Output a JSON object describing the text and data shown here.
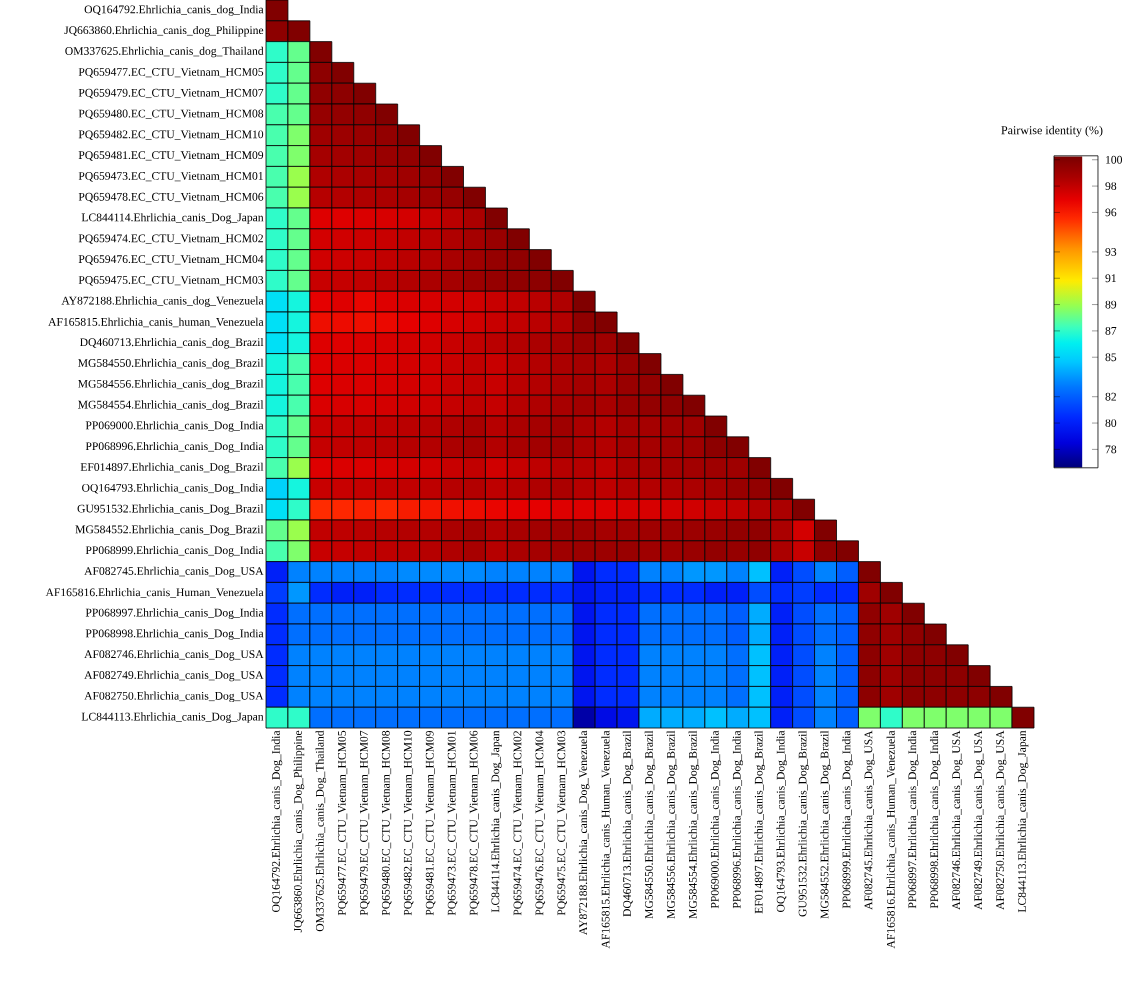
{
  "chart_data": {
    "type": "heatmap",
    "clabel": "Pairwise identity (%)",
    "clim": [
      76.6,
      100.3
    ],
    "cticks": [
      78,
      80,
      82,
      85,
      87,
      89,
      91,
      93,
      96,
      98,
      100
    ],
    "categories": [
      "OQ164792.Ehrlichia_canis_Dog_India",
      "JQ663860.Ehrlichia_canis_Dog_Philippine",
      "OM337625.Ehrlichia_canis_Dog_Thailand",
      "PQ659477.EC_CTU_Vietnam_HCM05",
      "PQ659479.EC_CTU_Vietnam_HCM07",
      "PQ659480.EC_CTU_Vietnam_HCM08",
      "PQ659482.EC_CTU_Vietnam_HCM10",
      "PQ659481.EC_CTU_Vietnam_HCM09",
      "PQ659473.EC_CTU_Vietnam_HCM01",
      "PQ659478.EC_CTU_Vietnam_HCM06",
      "LC844114.Ehrlichia_canis_Dog_Japan",
      "PQ659474.EC_CTU_Vietnam_HCM02",
      "PQ659476.EC_CTU_Vietnam_HCM04",
      "PQ659475.EC_CTU_Vietnam_HCM03",
      "AY872188.Ehrlichia_canis_Dog_Venezuela",
      "AF165815.Ehrlichia_canis_Human_Venezuela",
      "DQ460713.Ehrlichia_canis_Dog_Brazil",
      "MG584550.Ehrlichia_canis_Dog_Brazil",
      "MG584556.Ehrlichia_canis_Dog_Brazil",
      "MG584554.Ehrlichia_canis_Dog_Brazil",
      "PP069000.Ehrlichia_canis_Dog_India",
      "PP068996.Ehrlichia_canis_Dog_India",
      "EF014897.Ehrlichia_canis_Dog_Brazil",
      "OQ164793.Ehrlichia_canis_Dog_India",
      "GU951532.Ehrlichia_canis_Dog_Brazil",
      "MG584552.Ehrlichia_canis_Dog_Brazil",
      "PP068999.Ehrlichia_canis_Dog_India",
      "AF082745.Ehrlichia_canis_Dog_USA",
      "AF165816.Ehrlichia_canis_Human_Venezuela",
      "PP068997.Ehrlichia_canis_Dog_India",
      "PP068998.Ehrlichia_canis_Dog_India",
      "AF082746.Ehrlichia_canis_Dog_USA",
      "AF082749.Ehrlichia_canis_Dog_USA",
      "AF082750.Ehrlichia_canis_Dog_USA",
      "LC844113.Ehrlichia_canis_Dog_Japan"
    ],
    "y_categories": [
      "OQ164792.Ehrlichia_canis_dog_India",
      "JQ663860.Ehrlichia_canis_dog_Philippine",
      "OM337625.Ehrlichia_canis_dog_Thailand",
      "PQ659477.EC_CTU_Vietnam_HCM05",
      "PQ659479.EC_CTU_Vietnam_HCM07",
      "PQ659480.EC_CTU_Vietnam_HCM08",
      "PQ659482.EC_CTU_Vietnam_HCM10",
      "PQ659481.EC_CTU_Vietnam_HCM09",
      "PQ659473.EC_CTU_Vietnam_HCM01",
      "PQ659478.EC_CTU_Vietnam_HCM06",
      "LC844114.Ehrlichia_canis_Dog_Japan",
      "PQ659474.EC_CTU_Vietnam_HCM02",
      "PQ659476.EC_CTU_Vietnam_HCM04",
      "PQ659475.EC_CTU_Vietnam_HCM03",
      "AY872188.Ehrlichia_canis_dog_Venezuela",
      "AF165815.Ehrlichia_canis_human_Venezuela",
      "DQ460713.Ehrlichia_canis_dog_Brazil",
      "MG584550.Ehrlichia_canis_dog_Brazil",
      "MG584556.Ehrlichia_canis_dog_Brazil",
      "MG584554.Ehrlichia_canis_dog_Brazil",
      "PP069000.Ehrlichia_canis_Dog_India",
      "PP068996.Ehrlichia_canis_Dog_India",
      "EF014897.Ehrlichia_canis_Dog_Brazil",
      "OQ164793.Ehrlichia_canis_Dog_India",
      "GU951532.Ehrlichia_canis_Dog_Brazil",
      "MG584552.Ehrlichia_canis_Dog_Brazil",
      "PP068999.Ehrlichia_canis_Dog_India",
      "AF082745.Ehrlichia_canis_Dog_USA",
      "AF165816.Ehrlichia_canis_Human_Venezuela",
      "PP068997.Ehrlichia_canis_Dog_India",
      "PP068998.Ehrlichia_canis_Dog_India",
      "AF082746.Ehrlichia_canis_Dog_USA",
      "AF082749.Ehrlichia_canis_Dog_USA",
      "AF082750.Ehrlichia_canis_Dog_USA",
      "LC844113.Ehrlichia_canis_Dog_Japan"
    ],
    "cells": [
      [
        100,
        null,
        null,
        null,
        null,
        null,
        null,
        null,
        null,
        null,
        null,
        null,
        null,
        null,
        null,
        null,
        null,
        null,
        null,
        null,
        null,
        null,
        null,
        null,
        null,
        null,
        null,
        null,
        null,
        null,
        null,
        null,
        null,
        null,
        null
      ],
      [
        99.6,
        100,
        null,
        null,
        null,
        null,
        null,
        null,
        null,
        null,
        null,
        null,
        null,
        null,
        null,
        null,
        null,
        null,
        null,
        null,
        null,
        null,
        null,
        null,
        null,
        null,
        null,
        null,
        null,
        null,
        null,
        null,
        null,
        null,
        null
      ],
      [
        87,
        88,
        100,
        null,
        null,
        null,
        null,
        null,
        null,
        null,
        null,
        null,
        null,
        null,
        null,
        null,
        null,
        null,
        null,
        null,
        null,
        null,
        null,
        null,
        null,
        null,
        null,
        null,
        null,
        null,
        null,
        null,
        null,
        null,
        null
      ],
      [
        87,
        88,
        99.6,
        100,
        null,
        null,
        null,
        null,
        null,
        null,
        null,
        null,
        null,
        null,
        null,
        null,
        null,
        null,
        null,
        null,
        null,
        null,
        null,
        null,
        null,
        null,
        null,
        null,
        null,
        null,
        null,
        null,
        null,
        null,
        null
      ],
      [
        87,
        88,
        99.5,
        99.6,
        100,
        null,
        null,
        null,
        null,
        null,
        null,
        null,
        null,
        null,
        null,
        null,
        null,
        null,
        null,
        null,
        null,
        null,
        null,
        null,
        null,
        null,
        null,
        null,
        null,
        null,
        null,
        null,
        null,
        null,
        null
      ],
      [
        87.5,
        88,
        99.3,
        99.4,
        99.5,
        100,
        null,
        null,
        null,
        null,
        null,
        null,
        null,
        null,
        null,
        null,
        null,
        null,
        null,
        null,
        null,
        null,
        null,
        null,
        null,
        null,
        null,
        null,
        null,
        null,
        null,
        null,
        null,
        null,
        null
      ],
      [
        87.5,
        88.5,
        99,
        99.1,
        99.2,
        99.4,
        100,
        null,
        null,
        null,
        null,
        null,
        null,
        null,
        null,
        null,
        null,
        null,
        null,
        null,
        null,
        null,
        null,
        null,
        null,
        null,
        null,
        null,
        null,
        null,
        null,
        null,
        null,
        null,
        null
      ],
      [
        87.5,
        88.5,
        98.8,
        98.9,
        99,
        99.2,
        99.4,
        100,
        null,
        null,
        null,
        null,
        null,
        null,
        null,
        null,
        null,
        null,
        null,
        null,
        null,
        null,
        null,
        null,
        null,
        null,
        null,
        null,
        null,
        null,
        null,
        null,
        null,
        null,
        null
      ],
      [
        87.5,
        89,
        98.5,
        98.6,
        98.7,
        98.8,
        99,
        99.3,
        100,
        null,
        null,
        null,
        null,
        null,
        null,
        null,
        null,
        null,
        null,
        null,
        null,
        null,
        null,
        null,
        null,
        null,
        null,
        null,
        null,
        null,
        null,
        null,
        null,
        null,
        null
      ],
      [
        87.5,
        89,
        98.3,
        98.4,
        98.5,
        98.6,
        98.8,
        99,
        99.3,
        100,
        null,
        null,
        null,
        null,
        null,
        null,
        null,
        null,
        null,
        null,
        null,
        null,
        null,
        null,
        null,
        null,
        null,
        null,
        null,
        null,
        null,
        null,
        null,
        null,
        null
      ],
      [
        87,
        88,
        97.2,
        97.2,
        97.3,
        97.4,
        97.5,
        97.8,
        98.2,
        98.6,
        100,
        null,
        null,
        null,
        null,
        null,
        null,
        null,
        null,
        null,
        null,
        null,
        null,
        null,
        null,
        null,
        null,
        null,
        null,
        null,
        null,
        null,
        null,
        null,
        null
      ],
      [
        87,
        88,
        97.5,
        97.6,
        97.7,
        97.8,
        98,
        98.2,
        98.5,
        98.8,
        99.2,
        100,
        null,
        null,
        null,
        null,
        null,
        null,
        null,
        null,
        null,
        null,
        null,
        null,
        null,
        null,
        null,
        null,
        null,
        null,
        null,
        null,
        null,
        null,
        null
      ],
      [
        87,
        88,
        97.6,
        97.7,
        97.8,
        98,
        98.2,
        98.4,
        98.7,
        99,
        99.3,
        99.5,
        100,
        null,
        null,
        null,
        null,
        null,
        null,
        null,
        null,
        null,
        null,
        null,
        null,
        null,
        null,
        null,
        null,
        null,
        null,
        null,
        null,
        null,
        null
      ],
      [
        87,
        88,
        97.8,
        97.9,
        98,
        98.2,
        98.4,
        98.6,
        98.8,
        99.1,
        99.3,
        99.5,
        99.6,
        100,
        null,
        null,
        null,
        null,
        null,
        null,
        null,
        null,
        null,
        null,
        null,
        null,
        null,
        null,
        null,
        null,
        null,
        null,
        null,
        null,
        null
      ],
      [
        85.5,
        86.5,
        97,
        97.2,
        96.8,
        97.2,
        97.3,
        97.4,
        97.5,
        97.6,
        97.8,
        98,
        98.2,
        98.5,
        100,
        null,
        null,
        null,
        null,
        null,
        null,
        null,
        null,
        null,
        null,
        null,
        null,
        null,
        null,
        null,
        null,
        null,
        null,
        null,
        null
      ],
      [
        85.5,
        86.5,
        96.5,
        96.6,
        96.5,
        96.7,
        97,
        97.2,
        97.4,
        97.6,
        97.8,
        98,
        98.2,
        98.4,
        99.5,
        100,
        null,
        null,
        null,
        null,
        null,
        null,
        null,
        null,
        null,
        null,
        null,
        null,
        null,
        null,
        null,
        null,
        null,
        null,
        null
      ],
      [
        85.5,
        86.5,
        97.2,
        97.2,
        97.3,
        97.4,
        97.5,
        97.6,
        97.8,
        98,
        98.2,
        98.4,
        98.6,
        98.8,
        99.2,
        99,
        100,
        null,
        null,
        null,
        null,
        null,
        null,
        null,
        null,
        null,
        null,
        null,
        null,
        null,
        null,
        null,
        null,
        null,
        null
      ],
      [
        86.5,
        87.5,
        97.2,
        97.3,
        97.3,
        97.4,
        97.5,
        97.6,
        97.8,
        98,
        97.8,
        98.2,
        98.4,
        98.6,
        98.8,
        98.6,
        99.2,
        100,
        null,
        null,
        null,
        null,
        null,
        null,
        null,
        null,
        null,
        null,
        null,
        null,
        null,
        null,
        null,
        null,
        null
      ],
      [
        86.5,
        87.5,
        97.2,
        97.3,
        97.3,
        97.4,
        97.5,
        97.6,
        97.8,
        98,
        97.8,
        98.2,
        98.4,
        98.6,
        98.8,
        98.6,
        99.2,
        99.4,
        100,
        null,
        null,
        null,
        null,
        null,
        null,
        null,
        null,
        null,
        null,
        null,
        null,
        null,
        null,
        null,
        null
      ],
      [
        86.5,
        87.5,
        97.3,
        97.4,
        97.4,
        97.5,
        97.6,
        97.7,
        97.9,
        98.1,
        97.9,
        98.3,
        98.5,
        98.7,
        98.9,
        98.7,
        99.2,
        99.4,
        99.5,
        100,
        null,
        null,
        null,
        null,
        null,
        null,
        null,
        null,
        null,
        null,
        null,
        null,
        null,
        null,
        null
      ],
      [
        87,
        88,
        97.8,
        97.9,
        98,
        98.1,
        98.2,
        98.3,
        98.5,
        98.7,
        98.3,
        98.6,
        98.8,
        99,
        98.6,
        98.4,
        98.8,
        98.8,
        98.9,
        99,
        100,
        null,
        null,
        null,
        null,
        null,
        null,
        null,
        null,
        null,
        null,
        null,
        null,
        null,
        null
      ],
      [
        87,
        88,
        97.9,
        98,
        98.1,
        98.2,
        98.3,
        98.4,
        98.6,
        98.8,
        98.4,
        98.7,
        98.9,
        99,
        98.6,
        98.4,
        98.8,
        98.8,
        98.9,
        99,
        99.6,
        100,
        null,
        null,
        null,
        null,
        null,
        null,
        null,
        null,
        null,
        null,
        null,
        null,
        null
      ],
      [
        87.5,
        89,
        97.2,
        97.3,
        97.3,
        97.4,
        97.5,
        97.6,
        97.8,
        98,
        97.6,
        97.9,
        98.1,
        98.3,
        98.3,
        98.1,
        98.6,
        98.7,
        98.8,
        98.9,
        99,
        99,
        100,
        null,
        null,
        null,
        null,
        null,
        null,
        null,
        null,
        null,
        null,
        null,
        null
      ],
      [
        85,
        86.5,
        97.8,
        97.8,
        97.9,
        98,
        98,
        98.1,
        98.3,
        98.4,
        98.1,
        98.3,
        98.5,
        98.6,
        98.3,
        98.1,
        98.4,
        98.4,
        98.5,
        98.6,
        98.8,
        99.2,
        99.4,
        100,
        null,
        null,
        null,
        null,
        null,
        null,
        null,
        null,
        null,
        null,
        null
      ],
      [
        85.5,
        87,
        95.5,
        95.6,
        95.8,
        95.6,
        96,
        96.2,
        96.4,
        96.6,
        96.8,
        97,
        97,
        97.2,
        97.2,
        97.2,
        97.4,
        97.4,
        97.5,
        97.6,
        97.8,
        98,
        98.4,
        98.6,
        100,
        null,
        null,
        null,
        null,
        null,
        null,
        null,
        null,
        null,
        null
      ],
      [
        88,
        89,
        98,
        98.1,
        98.2,
        98.3,
        98.4,
        98.4,
        98.6,
        98.8,
        98.4,
        98.7,
        98.9,
        99,
        99,
        98.8,
        98.9,
        99,
        99,
        99.1,
        99.2,
        99.4,
        99.5,
        98.6,
        97.5,
        100,
        null,
        null,
        null,
        null,
        null,
        null,
        null,
        null,
        null
      ],
      [
        87.5,
        88.5,
        97.8,
        97.9,
        98,
        98.1,
        98.2,
        98.3,
        98.5,
        98.7,
        98.3,
        98.6,
        98.8,
        99,
        99.1,
        99.1,
        99.2,
        99,
        99,
        99.2,
        99.4,
        99.3,
        99.5,
        98.6,
        97.8,
        99.5,
        100,
        null,
        null,
        null,
        null,
        null,
        null,
        null,
        null
      ],
      [
        80,
        83,
        83,
        83,
        83,
        83,
        83.2,
        83.2,
        83.2,
        83.2,
        83,
        83,
        83,
        83,
        79.5,
        80.5,
        80.5,
        83,
        83,
        83.5,
        83.5,
        83,
        84.5,
        80,
        81.5,
        83,
        82,
        100,
        null,
        null,
        null,
        null,
        null,
        null,
        null
      ],
      [
        81,
        83.5,
        80.5,
        80,
        80,
        80.5,
        80.5,
        80.5,
        80.5,
        80.5,
        80.5,
        80.5,
        80.5,
        80.5,
        79.5,
        80,
        80,
        80.5,
        80.5,
        80.5,
        80,
        80,
        81.5,
        80.5,
        81,
        80.5,
        80.5,
        99,
        100,
        null,
        null,
        null,
        null,
        null,
        null
      ],
      [
        80.5,
        82.5,
        82.5,
        82.5,
        82.5,
        82.5,
        82.5,
        82.5,
        82.5,
        82.5,
        82.5,
        82.5,
        82.5,
        82.5,
        79.5,
        80.5,
        80.5,
        82.5,
        82.5,
        82.5,
        82.5,
        82,
        84,
        80,
        81.5,
        82.5,
        82,
        99.5,
        99,
        100,
        null,
        null,
        null,
        null,
        null
      ],
      [
        80.5,
        82.5,
        82.5,
        82.5,
        82.5,
        82.5,
        82.5,
        82.5,
        82.5,
        82.5,
        82.5,
        82.5,
        82.5,
        82.5,
        79.5,
        80.5,
        80.5,
        82.5,
        82.5,
        82.5,
        82.5,
        82,
        84,
        80,
        81.5,
        82.5,
        82,
        99.5,
        99,
        99.5,
        100,
        null,
        null,
        null,
        null
      ],
      [
        80.5,
        83,
        83,
        83,
        83,
        83,
        83,
        83,
        83,
        83,
        83,
        83,
        83,
        83,
        79.5,
        80.5,
        80.5,
        83,
        83,
        83,
        83,
        82.5,
        84.5,
        80,
        81.5,
        83,
        82,
        99.6,
        99,
        99.6,
        99.6,
        100,
        null,
        null,
        null
      ],
      [
        80.5,
        83,
        83,
        83,
        83,
        83,
        83,
        83,
        83,
        83,
        83,
        83,
        83,
        83,
        79.5,
        80.5,
        80.5,
        83,
        83,
        83,
        83,
        82.5,
        84.5,
        80,
        81.5,
        83,
        82,
        99.6,
        99,
        99.6,
        99.6,
        99.6,
        100,
        null,
        null
      ],
      [
        80.5,
        83,
        83,
        83,
        83,
        83,
        83,
        83,
        83,
        83,
        83,
        83,
        83,
        83,
        79.5,
        80.5,
        80.5,
        83,
        83,
        83,
        83,
        82.5,
        84.5,
        80,
        81.5,
        83,
        82,
        99.6,
        99,
        99.6,
        99.6,
        99.6,
        99.6,
        100,
        null
      ],
      [
        87,
        87,
        82.5,
        82.5,
        82.5,
        82.5,
        82.5,
        82.5,
        82.5,
        82.5,
        82.5,
        82.5,
        82.5,
        82.5,
        77.5,
        79,
        79.5,
        84,
        84,
        84,
        84.5,
        84,
        84.5,
        80,
        81.5,
        83,
        82,
        88.5,
        87,
        88.5,
        88.5,
        88.5,
        88.5,
        88.5,
        100
      ]
    ]
  }
}
